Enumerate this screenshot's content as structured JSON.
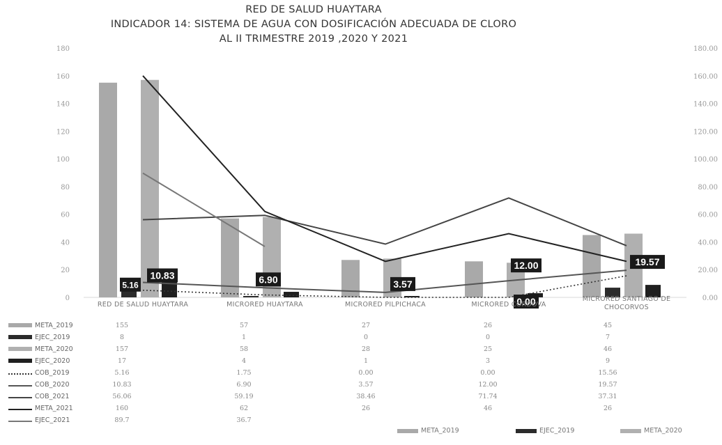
{
  "chart_data": {
    "type": "bar",
    "title": "RED DE SALUD HUAYTARA",
    "subtitle_lines": [
      "INDICADOR 14: SISTEMA DE AGUA CON DOSIFICACIÓN ADECUADA DE CLORO",
      "AL II TRIMESTRE  2019 ,2020 Y 2021"
    ],
    "categories": [
      "RED DE SALUD HUAYTARA",
      "MICRORED HUAYTARA",
      "MICRORED PILPICHACA",
      "MICRORED CORDOVA",
      "MICRORED SANTIAGO DE CHOCORVOS"
    ],
    "ylim_left": [
      0,
      180
    ],
    "yticks_left": [
      "0",
      "20",
      "40",
      "60",
      "80",
      "100",
      "120",
      "140",
      "160",
      "180"
    ],
    "ylim_right": [
      0,
      180
    ],
    "yticks_right": [
      "0.00",
      "20.00",
      "40.00",
      "60.00",
      "80.00",
      "100.00",
      "120.00",
      "140.00",
      "160.00",
      "180.00"
    ],
    "bar_series": [
      {
        "name": "META_2019",
        "values": [
          155,
          57,
          27,
          26,
          45
        ],
        "display": [
          "155",
          "57",
          "27",
          "26",
          "45"
        ],
        "color": "#a9a9a9"
      },
      {
        "name": "EJEC_2019",
        "values": [
          8,
          1,
          0,
          0,
          7
        ],
        "display": [
          "8",
          "1",
          "0",
          "0",
          "7"
        ],
        "color": "#2b2b2b"
      },
      {
        "name": "META_2020",
        "values": [
          157,
          58,
          28,
          25,
          46
        ],
        "display": [
          "157",
          "58",
          "28",
          "25",
          "46"
        ],
        "color": "#b0b0b0"
      },
      {
        "name": "EJEC_2020",
        "values": [
          17,
          4,
          1,
          3,
          9
        ],
        "display": [
          "17",
          "4",
          "1",
          "3",
          "9"
        ],
        "color": "#1f1f1f"
      }
    ],
    "line_series": [
      {
        "name": "COB_2019",
        "values": [
          5.16,
          1.75,
          0.0,
          0.0,
          15.56
        ],
        "display": [
          "5.16",
          "1.75",
          "0.00",
          "0.00",
          "15.56"
        ],
        "color": "#333333",
        "dash": "dotted"
      },
      {
        "name": "COB_2020",
        "values": [
          10.83,
          6.9,
          3.57,
          12.0,
          19.57
        ],
        "display": [
          "10.83",
          "6.90",
          "3.57",
          "12.00",
          "19.57"
        ],
        "color": "#555555",
        "dash": "solid"
      },
      {
        "name": "COB_2021",
        "values": [
          56.06,
          59.19,
          38.46,
          71.74,
          37.31
        ],
        "display": [
          "56.06",
          "59.19",
          "38.46",
          "71.74",
          "37.31"
        ],
        "color": "#444444",
        "dash": "solid"
      },
      {
        "name": "META_2021",
        "values": [
          160,
          62,
          26,
          46,
          26
        ],
        "display": [
          "160",
          "62",
          "26",
          "46",
          "26"
        ],
        "color": "#222222",
        "dash": "solid"
      },
      {
        "name": "EJEC_2021",
        "values": [
          89.7,
          36.7,
          null,
          null,
          null
        ],
        "display": [
          "89.7",
          "36.7",
          "",
          "",
          ""
        ],
        "color": "#777777",
        "dash": "solid"
      }
    ],
    "data_labels": [
      {
        "text": "5.16",
        "series": "COB_2019",
        "category": 0
      },
      {
        "text": "10.83",
        "series": "COB_2020",
        "category": 0
      },
      {
        "text": "6.90",
        "series": "COB_2020",
        "category": 1
      },
      {
        "text": "3.57",
        "series": "COB_2020",
        "category": 2
      },
      {
        "text": "12.00",
        "series": "COB_2020",
        "category": 3
      },
      {
        "text": "0.00",
        "series": "COB_2019",
        "category": 3
      },
      {
        "text": "19.57",
        "series": "COB_2020",
        "category": 4
      }
    ],
    "legend_bottom": [
      "META_2019",
      "EJEC_2019",
      "META_2020"
    ]
  }
}
